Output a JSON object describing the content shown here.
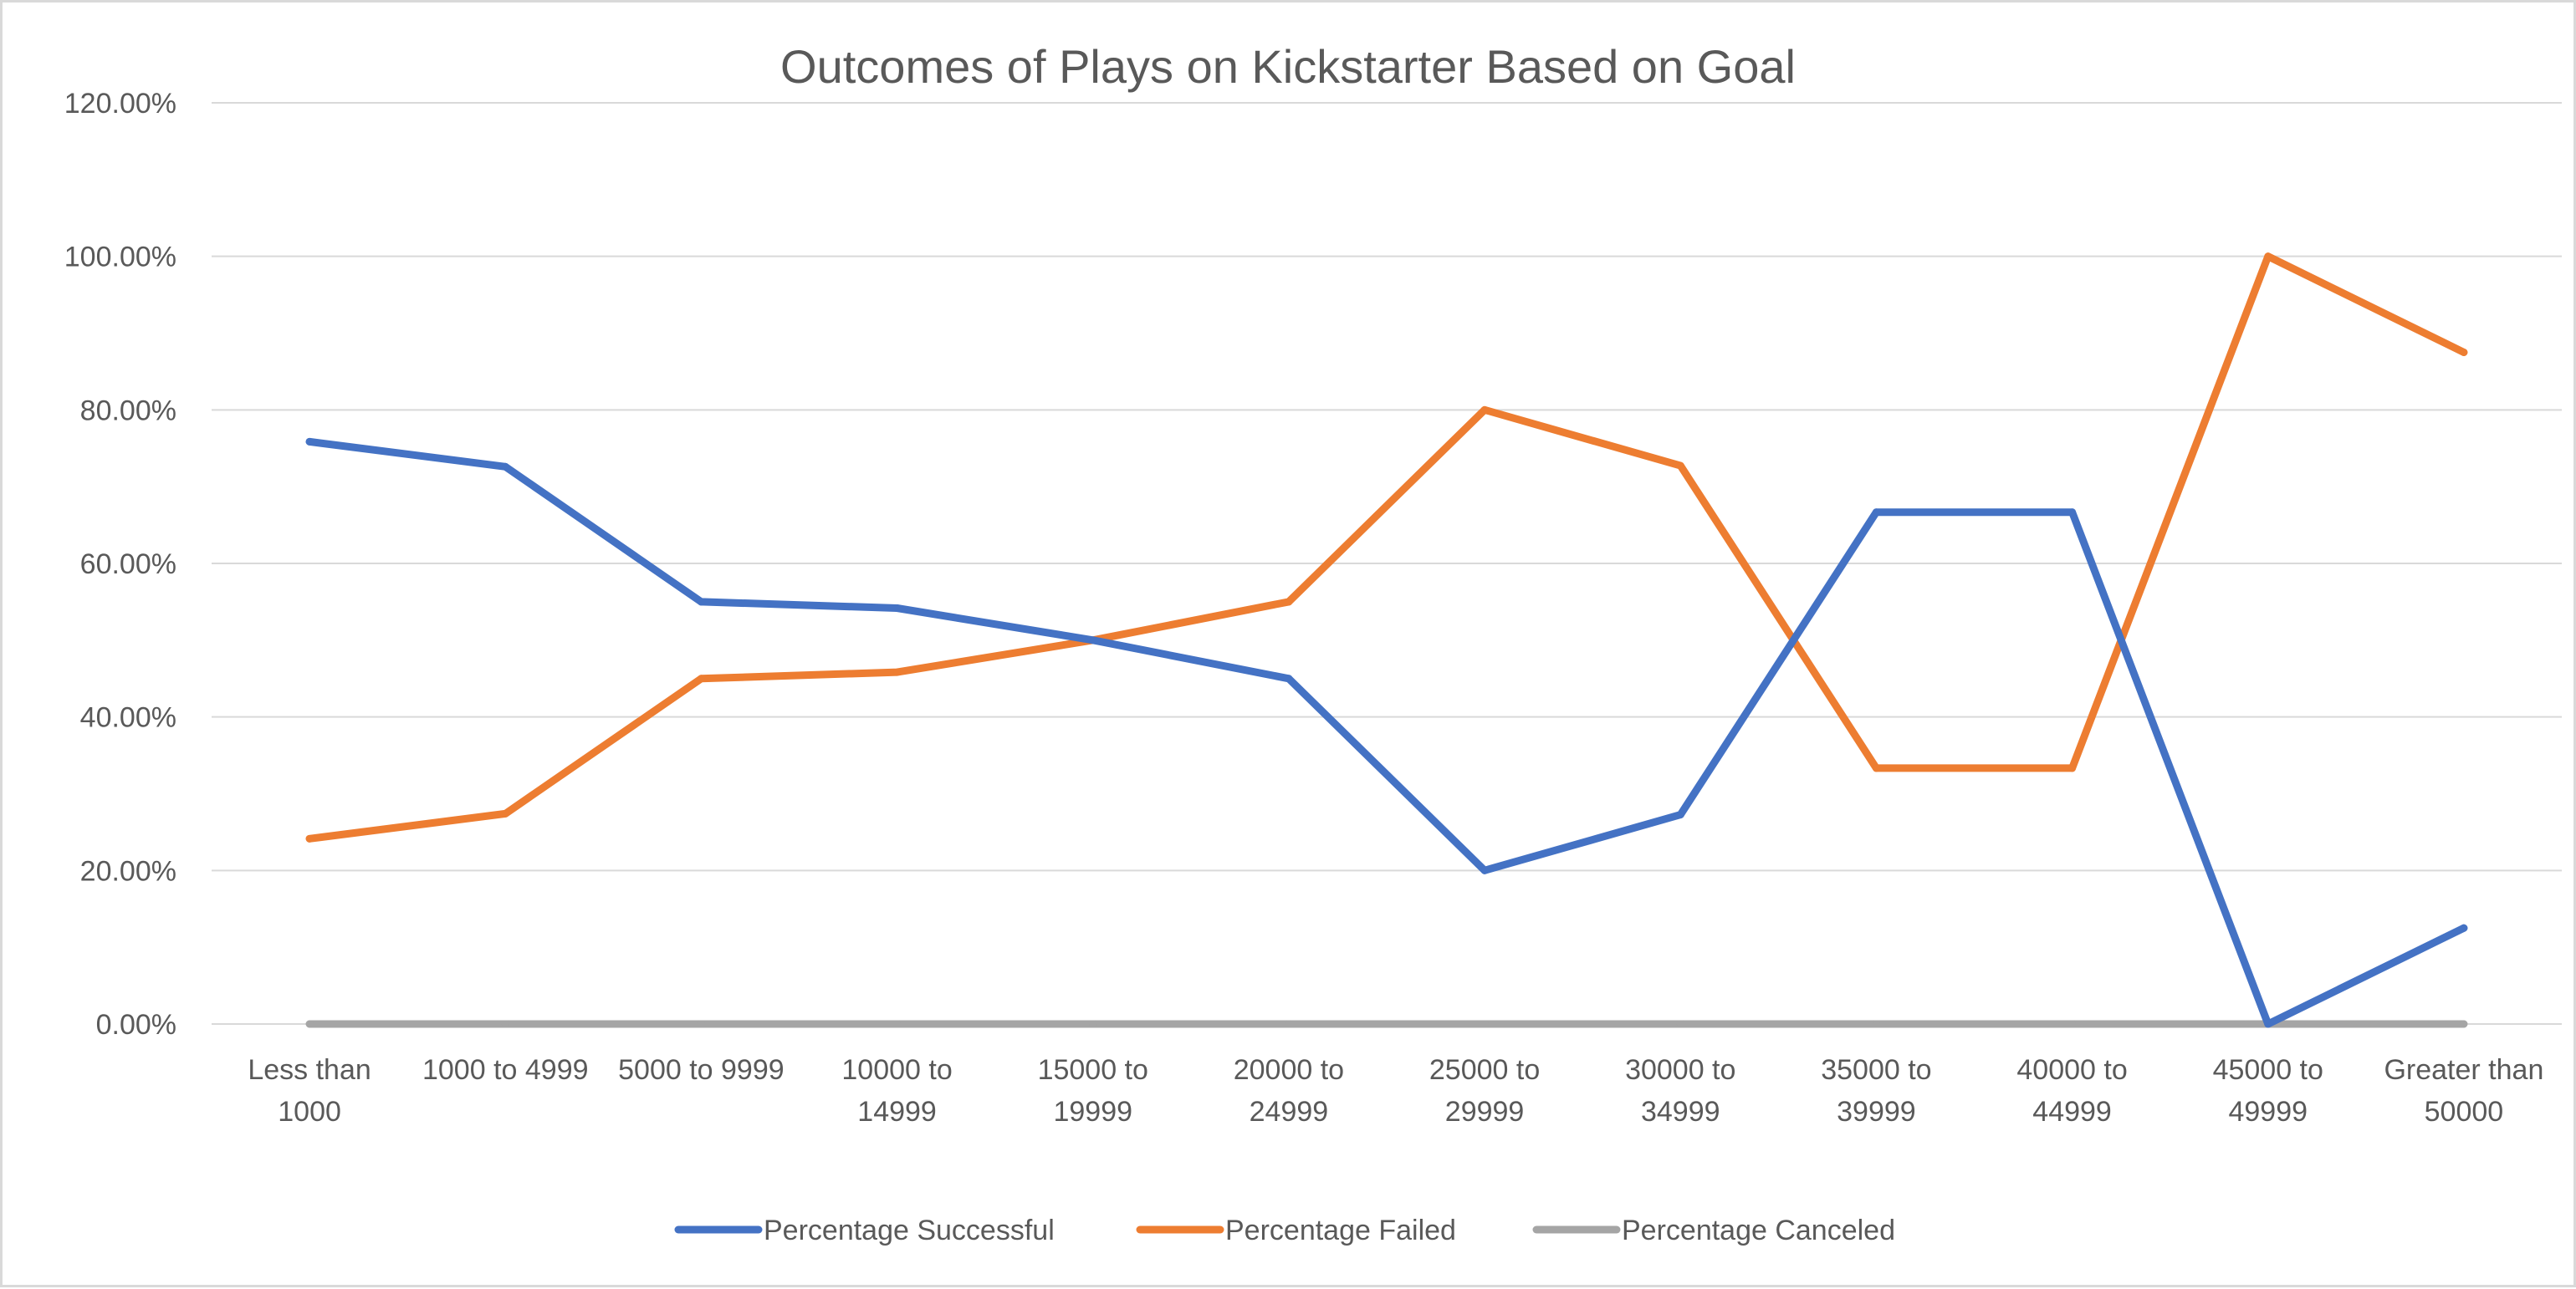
{
  "chart_data": {
    "type": "line",
    "title": "Outcomes of Plays on Kickstarter Based on Goal",
    "xlabel": "",
    "ylabel": "",
    "categories": [
      [
        "Less than",
        "1000"
      ],
      [
        "1000 to 4999"
      ],
      [
        "5000 to 9999"
      ],
      [
        "10000 to",
        "14999"
      ],
      [
        "15000 to",
        "19999"
      ],
      [
        "20000 to",
        "24999"
      ],
      [
        "25000 to",
        "29999"
      ],
      [
        "30000 to",
        "34999"
      ],
      [
        "35000 to",
        "39999"
      ],
      [
        "40000 to",
        "44999"
      ],
      [
        "45000 to",
        "49999"
      ],
      [
        "Greater than",
        "50000"
      ]
    ],
    "series": [
      {
        "name": "Percentage Successful",
        "color": "#4472C4",
        "values": [
          75.86,
          72.6,
          55.0,
          54.17,
          50.0,
          45.0,
          20.0,
          27.27,
          66.67,
          66.67,
          0.0,
          12.5
        ]
      },
      {
        "name": "Percentage Failed",
        "color": "#ED7D31",
        "values": [
          24.14,
          27.4,
          45.0,
          45.83,
          50.0,
          55.0,
          80.0,
          72.73,
          33.33,
          33.33,
          100.0,
          87.5
        ]
      },
      {
        "name": "Percentage Canceled",
        "color": "#A5A5A5",
        "values": [
          0,
          0,
          0,
          0,
          0,
          0,
          0,
          0,
          0,
          0,
          0,
          0
        ]
      }
    ],
    "ylim": [
      0,
      120
    ],
    "yticks": [
      "0.00%",
      "20.00%",
      "40.00%",
      "60.00%",
      "80.00%",
      "100.00%",
      "120.00%"
    ],
    "grid": true,
    "legend_position": "bottom"
  }
}
